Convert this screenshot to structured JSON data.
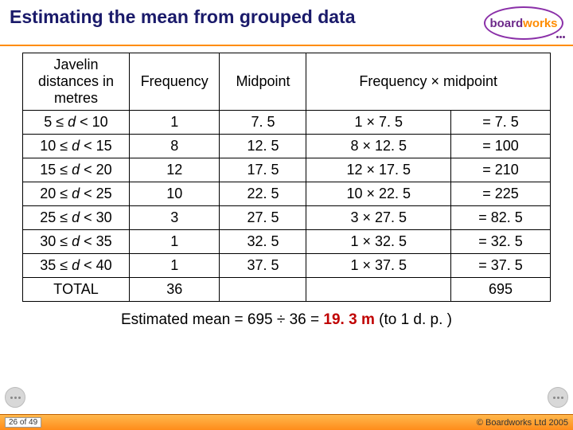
{
  "title": "Estimating the mean from grouped data",
  "logo": {
    "part1": "board",
    "part2": "works"
  },
  "table": {
    "headers": {
      "range": "Javelin distances in metres",
      "freq": "Frequency",
      "mid": "Midpoint",
      "fm": "Frequency × midpoint"
    },
    "rows": [
      {
        "lo": "5",
        "hi": "10",
        "freq": "1",
        "mid": "7. 5",
        "mult": "1 ×  7. 5",
        "res": "= 7. 5"
      },
      {
        "lo": "10",
        "hi": "15",
        "freq": "8",
        "mid": "12. 5",
        "mult": "8 × 12. 5",
        "res": "= 100"
      },
      {
        "lo": "15",
        "hi": "20",
        "freq": "12",
        "mid": "17. 5",
        "mult": "12 × 17. 5",
        "res": "= 210"
      },
      {
        "lo": "20",
        "hi": "25",
        "freq": "10",
        "mid": "22. 5",
        "mult": "10 × 22. 5",
        "res": "= 225"
      },
      {
        "lo": "25",
        "hi": "30",
        "freq": "3",
        "mid": "27. 5",
        "mult": "3 × 27. 5",
        "res": "= 82. 5"
      },
      {
        "lo": "30",
        "hi": "35",
        "freq": "1",
        "mid": "32. 5",
        "mult": "1 × 32. 5",
        "res": "= 32. 5"
      },
      {
        "lo": "35",
        "hi": "40",
        "freq": "1",
        "mid": "37. 5",
        "mult": "1 × 37. 5",
        "res": "= 37. 5"
      }
    ],
    "total_label": "TOTAL",
    "total_freq": "36",
    "total_fm": "695"
  },
  "formula": {
    "prefix": "Estimated mean = 695 ÷ 36  = ",
    "answer": "19. 3 m",
    "suffix": "   (to 1 d. p. )"
  },
  "footer": {
    "page": "26 of 49",
    "copyright": "© Boardworks Ltd 2005"
  }
}
